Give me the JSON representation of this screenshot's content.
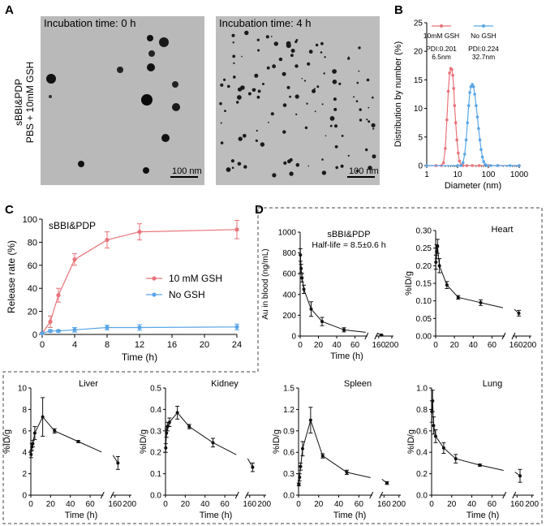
{
  "panel_labels": {
    "a": "A",
    "b": "B",
    "c": "C",
    "d": "D"
  },
  "panel_a": {
    "side_label_line1": "sBBI&PDP",
    "side_label_line2": "PBS + 10mM GSH",
    "images": [
      {
        "caption": "Incubation time: 0 h",
        "scale_bar": "100 nm"
      },
      {
        "caption": "Incubation time: 4 h",
        "scale_bar": "100 nm"
      }
    ]
  },
  "colors": {
    "red": "#e8737a",
    "blue": "#5aa6e6",
    "black": "#111111"
  },
  "chart_data": [
    {
      "id": "B",
      "type": "line",
      "title": "",
      "xlabel": "Diameter (nm)",
      "ylabel": "Distribution by number (%)",
      "xscale": "log",
      "xlim": [
        1,
        1000
      ],
      "ylim": [
        0,
        25
      ],
      "xticks": [
        "1",
        "10",
        "100",
        "1000"
      ],
      "yticks": [
        "0",
        "5",
        "10",
        "15",
        "20",
        "25"
      ],
      "series": [
        {
          "name": "10mM GSH",
          "pdi": "PDI:0.201",
          "size": "6.5nm",
          "color": "#e8737a",
          "x": [
            1,
            2,
            3,
            3.5,
            4,
            4.5,
            5,
            5.5,
            6,
            6.5,
            7,
            7.5,
            8,
            8.7,
            9.5,
            10.5,
            11.5,
            13,
            15,
            20,
            30,
            50,
            100,
            200,
            1000
          ],
          "y": [
            0,
            0,
            0,
            0.5,
            3,
            8,
            13,
            16.2,
            17.0,
            16.8,
            15.8,
            13.5,
            10.5,
            7.5,
            4.5,
            2.2,
            0.8,
            0.1,
            0,
            0,
            0,
            0,
            0,
            0,
            0
          ]
        },
        {
          "name": "No GSH",
          "pdi": "PDI:0.224",
          "size": "32.7nm",
          "color": "#5aa6e6",
          "x": [
            1,
            10,
            13,
            15,
            17,
            19,
            21,
            23,
            25,
            27,
            30,
            33,
            36,
            40,
            44,
            48,
            53,
            58,
            64,
            70,
            78,
            90,
            120,
            200,
            500,
            1000
          ],
          "y": [
            0,
            0,
            0,
            0.5,
            2,
            4.5,
            7.5,
            10.5,
            12.8,
            13.8,
            14.2,
            13.8,
            12.5,
            10.5,
            8.5,
            6.5,
            4.5,
            2.8,
            1.5,
            0.7,
            0.2,
            0,
            0,
            0,
            0,
            0
          ]
        }
      ]
    },
    {
      "id": "C",
      "type": "line",
      "title": "sBBI&PDP",
      "xlabel": "Time (h)",
      "ylabel": "Release rate (%)",
      "xlim": [
        0,
        24
      ],
      "ylim": [
        0,
        100
      ],
      "xticks": [
        "0",
        "4",
        "8",
        "12",
        "16",
        "20",
        "24"
      ],
      "yticks": [
        "0",
        "20",
        "40",
        "60",
        "80",
        "100"
      ],
      "series": [
        {
          "name": "10 mM GSH",
          "color": "#e8737a",
          "x": [
            0,
            1,
            2,
            4,
            8,
            12,
            24
          ],
          "y": [
            1,
            11,
            34,
            65,
            82,
            89,
            91
          ],
          "err": [
            1,
            5,
            6,
            5,
            7,
            7,
            8
          ]
        },
        {
          "name": "No GSH",
          "color": "#5aa6e6",
          "x": [
            0,
            1,
            2,
            4,
            8,
            12,
            24
          ],
          "y": [
            1,
            3,
            3,
            4,
            6,
            6,
            6.5
          ],
          "err": [
            0.5,
            1,
            1,
            2,
            2,
            2.5,
            2.5
          ]
        }
      ]
    },
    {
      "id": "D-blood",
      "type": "line",
      "title": "sBBI&PDP",
      "subtitle": "Half-life = 8.5±0.6 h",
      "xlabel": "Time (h)",
      "ylabel": "Au in blood (ng/mL)",
      "ylim": [
        0,
        1000
      ],
      "yticks": [
        "0",
        "200",
        "400",
        "600",
        "800",
        "1000"
      ],
      "xticks": [
        "0",
        "20",
        "40",
        "60",
        "160",
        "200"
      ],
      "series": [
        {
          "name": "Blood",
          "x": [
            0.25,
            1,
            2,
            4,
            12,
            24,
            48,
            168
          ],
          "y": [
            780,
            650,
            560,
            450,
            260,
            140,
            60,
            10
          ],
          "err": [
            60,
            40,
            40,
            40,
            70,
            40,
            20,
            5
          ]
        }
      ]
    },
    {
      "id": "D-heart",
      "type": "line",
      "title": "Heart",
      "xlabel": "",
      "ylabel": "%ID/g",
      "ylim": [
        0,
        0.3
      ],
      "yticks": [
        "0.00",
        "0.05",
        "0.10",
        "0.15",
        "0.20",
        "0.25",
        "0.30"
      ],
      "xticks": [
        "0",
        "20",
        "40",
        "60",
        "160",
        "200"
      ],
      "series": [
        {
          "name": "Heart",
          "x": [
            0.25,
            1,
            2,
            4,
            12,
            24,
            48,
            168
          ],
          "y": [
            0.21,
            0.24,
            0.255,
            0.2,
            0.145,
            0.11,
            0.095,
            0.065
          ],
          "err": [
            0.02,
            0.02,
            0.02,
            0.02,
            0.01,
            0.005,
            0.008,
            0.008
          ]
        }
      ]
    },
    {
      "id": "D-liver",
      "type": "line",
      "title": "Liver",
      "xlabel": "Time (h)",
      "ylabel": "%ID/g",
      "ylim": [
        0,
        10
      ],
      "yticks": [
        "0",
        "2",
        "4",
        "6",
        "8",
        "10"
      ],
      "xticks": [
        "0",
        "20",
        "40",
        "60",
        "160",
        "200"
      ],
      "series": [
        {
          "name": "Liver",
          "x": [
            0.25,
            1,
            2,
            4,
            12,
            24,
            48,
            168
          ],
          "y": [
            3.8,
            4.5,
            4.8,
            5.8,
            7.3,
            6.0,
            5.0,
            3.0
          ],
          "err": [
            0.3,
            0.3,
            0.3,
            0.6,
            1.8,
            0.2,
            0.1,
            0.6
          ]
        }
      ]
    },
    {
      "id": "D-kidney",
      "type": "line",
      "title": "Kidney",
      "xlabel": "Time (h)",
      "ylabel": "%ID/g",
      "ylim": [
        0,
        0.5
      ],
      "yticks": [
        "0.0",
        "0.1",
        "0.2",
        "0.3",
        "0.4",
        "0.5"
      ],
      "xticks": [
        "0",
        "20",
        "40",
        "60",
        "160",
        "200"
      ],
      "series": [
        {
          "name": "Kidney",
          "x": [
            0.25,
            1,
            2,
            4,
            12,
            24,
            48,
            168
          ],
          "y": [
            0.22,
            0.29,
            0.32,
            0.34,
            0.385,
            0.32,
            0.245,
            0.13
          ],
          "err": [
            0.02,
            0.02,
            0.02,
            0.02,
            0.03,
            0.01,
            0.02,
            0.02
          ]
        }
      ]
    },
    {
      "id": "D-spleen",
      "type": "line",
      "title": "Spleen",
      "xlabel": "Time (h)",
      "ylabel": "%ID/g",
      "ylim": [
        0,
        1.5
      ],
      "yticks": [
        "0.0",
        "0.3",
        "0.6",
        "0.9",
        "1.2",
        "1.5"
      ],
      "xticks": [
        "0",
        "20",
        "40",
        "60",
        "160",
        "200"
      ],
      "series": [
        {
          "name": "Spleen",
          "x": [
            0.25,
            1,
            2,
            4,
            12,
            24,
            48,
            168
          ],
          "y": [
            0.15,
            0.25,
            0.4,
            0.65,
            1.05,
            0.55,
            0.32,
            0.17
          ],
          "err": [
            0.02,
            0.05,
            0.05,
            0.1,
            0.18,
            0.03,
            0.03,
            0.02
          ]
        }
      ]
    },
    {
      "id": "D-lung",
      "type": "line",
      "title": "Lung",
      "xlabel": "Time (h)",
      "ylabel": "%ID/g",
      "ylim": [
        0,
        1.0
      ],
      "yticks": [
        "0.0",
        "0.2",
        "0.4",
        "0.6",
        "0.8",
        "1.0"
      ],
      "xticks": [
        "0",
        "20",
        "40",
        "60",
        "160",
        "200"
      ],
      "series": [
        {
          "name": "Lung",
          "x": [
            0.25,
            1,
            2,
            4,
            12,
            24,
            48,
            168
          ],
          "y": [
            0.78,
            0.88,
            0.65,
            0.55,
            0.44,
            0.34,
            0.28,
            0.18
          ],
          "err": [
            0.1,
            0.1,
            0.08,
            0.06,
            0.05,
            0.04,
            0.01,
            0.06
          ]
        }
      ]
    }
  ]
}
